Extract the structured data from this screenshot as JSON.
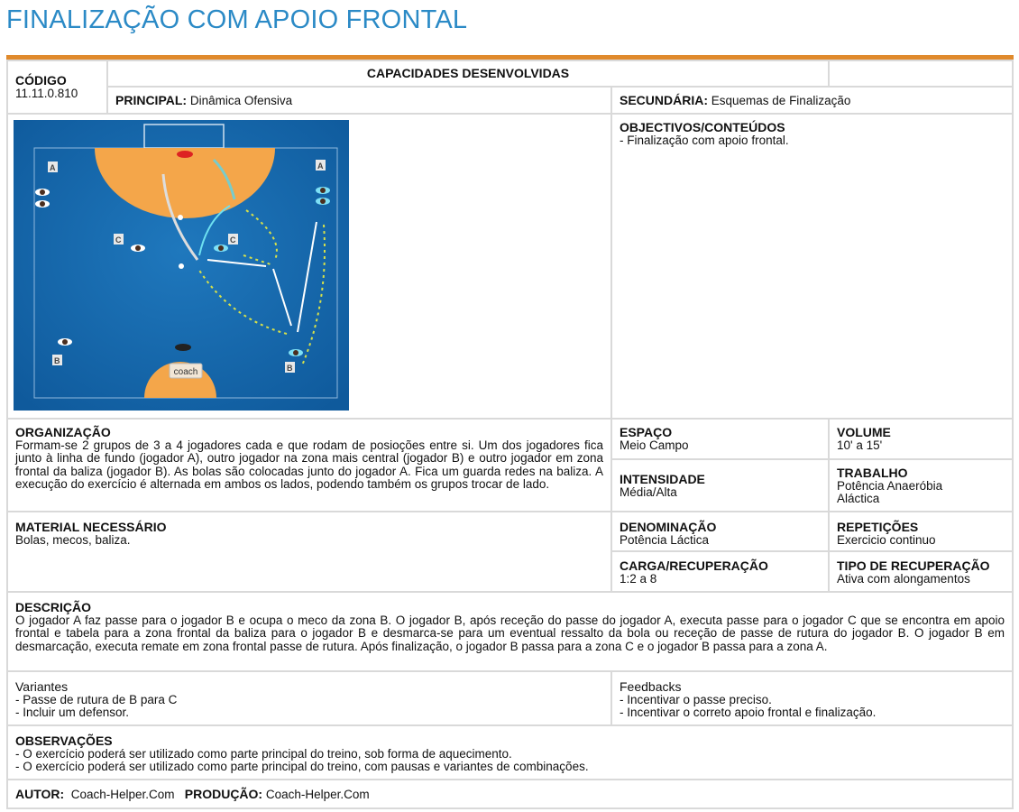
{
  "title": "FINALIZAÇÃO COM APOIO FRONTAL",
  "codigo": {
    "label": "CÓDIGO",
    "value": "11.11.0.810"
  },
  "capacidades": {
    "label": "CAPACIDADES DESENVOLVIDAS",
    "principal_label": "PRINCIPAL:",
    "principal": "Dinâmica Ofensiva",
    "secundaria_label": "SECUNDÁRIA:",
    "secundaria": "Esquemas de Finalização"
  },
  "diagram": {
    "labels": [
      "A",
      "A",
      "C",
      "C",
      "B",
      "B"
    ],
    "coach": "coach",
    "colors": {
      "field": "#1565a8",
      "area": "#f4a64a"
    }
  },
  "objectivos": {
    "label": "OBJECTIVOS/CONTEÚDOS",
    "text": "- Finalização com apoio frontal."
  },
  "organizacao": {
    "label": "ORGANIZAÇÃO",
    "text": "Formam-se 2 grupos de 3 a 4 jogadores cada e que rodam de posioções entre si. Um dos jogadores fica junto à linha de fundo (jogador A), outro jogador na zona mais central (jogador B) e outro jogador em zona frontal da baliza (jogador B). As bolas são colocadas junto do jogador A. Fica um guarda redes na baliza. A execução do exercício é alternada em ambos os lados, podendo também os grupos trocar de lado."
  },
  "espaco": {
    "label": "ESPAÇO",
    "value": "Meio Campo"
  },
  "volume": {
    "label": "VOLUME",
    "value": "10' a 15'"
  },
  "intensidade": {
    "label": "INTENSIDADE",
    "value": "Média/Alta"
  },
  "trabalho": {
    "label": "TRABALHO",
    "value": "Potência Anaeróbia Aláctica"
  },
  "material": {
    "label": "MATERIAL NECESSÁRIO",
    "value": "Bolas, mecos, baliza."
  },
  "denominacao": {
    "label": "DENOMINAÇÃO",
    "value": "Potência Láctica"
  },
  "repeticoes": {
    "label": "REPETIÇÕES",
    "value": "Exercicio continuo"
  },
  "carga": {
    "label": "CARGA/RECUPERAÇÃO",
    "value": "1:2 a 8"
  },
  "tipo_recuperacao": {
    "label": "TIPO DE RECUPERAÇÃO",
    "value": "Ativa com alongamentos"
  },
  "descricao": {
    "label": "DESCRIÇÃO",
    "text": "O jogador A faz passe para o jogador B e ocupa o meco da zona B. O jogador B, após receção do passe do jogador A, executa passe para o jogador C que se encontra em apoio frontal e tabela para a zona frontal da baliza para o jogador B e desmarca-se para um eventual ressalto da bola ou receção de passe de rutura do jogador B. O jogador B em desmarcação, executa remate em zona frontal passe de rutura. Após finalização, o jogador B passa para a zona C e o jogador B passa para a zona A."
  },
  "variantes": {
    "label": "Variantes",
    "items": [
      "- Passe de rutura de B para C",
      "- Incluir um defensor."
    ]
  },
  "feedbacks": {
    "label": "Feedbacks",
    "items": [
      "- Incentivar o passe preciso.",
      "- Incentivar o correto apoio frontal e finalização."
    ]
  },
  "observacoes": {
    "label": "OBSERVAÇÕES",
    "items": [
      "- O exercício poderá ser utilizado como parte principal do treino, sob forma de aquecimento.",
      "- O exercício poderá ser utilizado como parte principal do treino, com pausas e variantes de combinações."
    ]
  },
  "autor": {
    "label": "AUTOR:",
    "value": "Coach-Helper.Com",
    "producao_label": "PRODUÇÃO:",
    "producao": "Coach-Helper.Com"
  }
}
